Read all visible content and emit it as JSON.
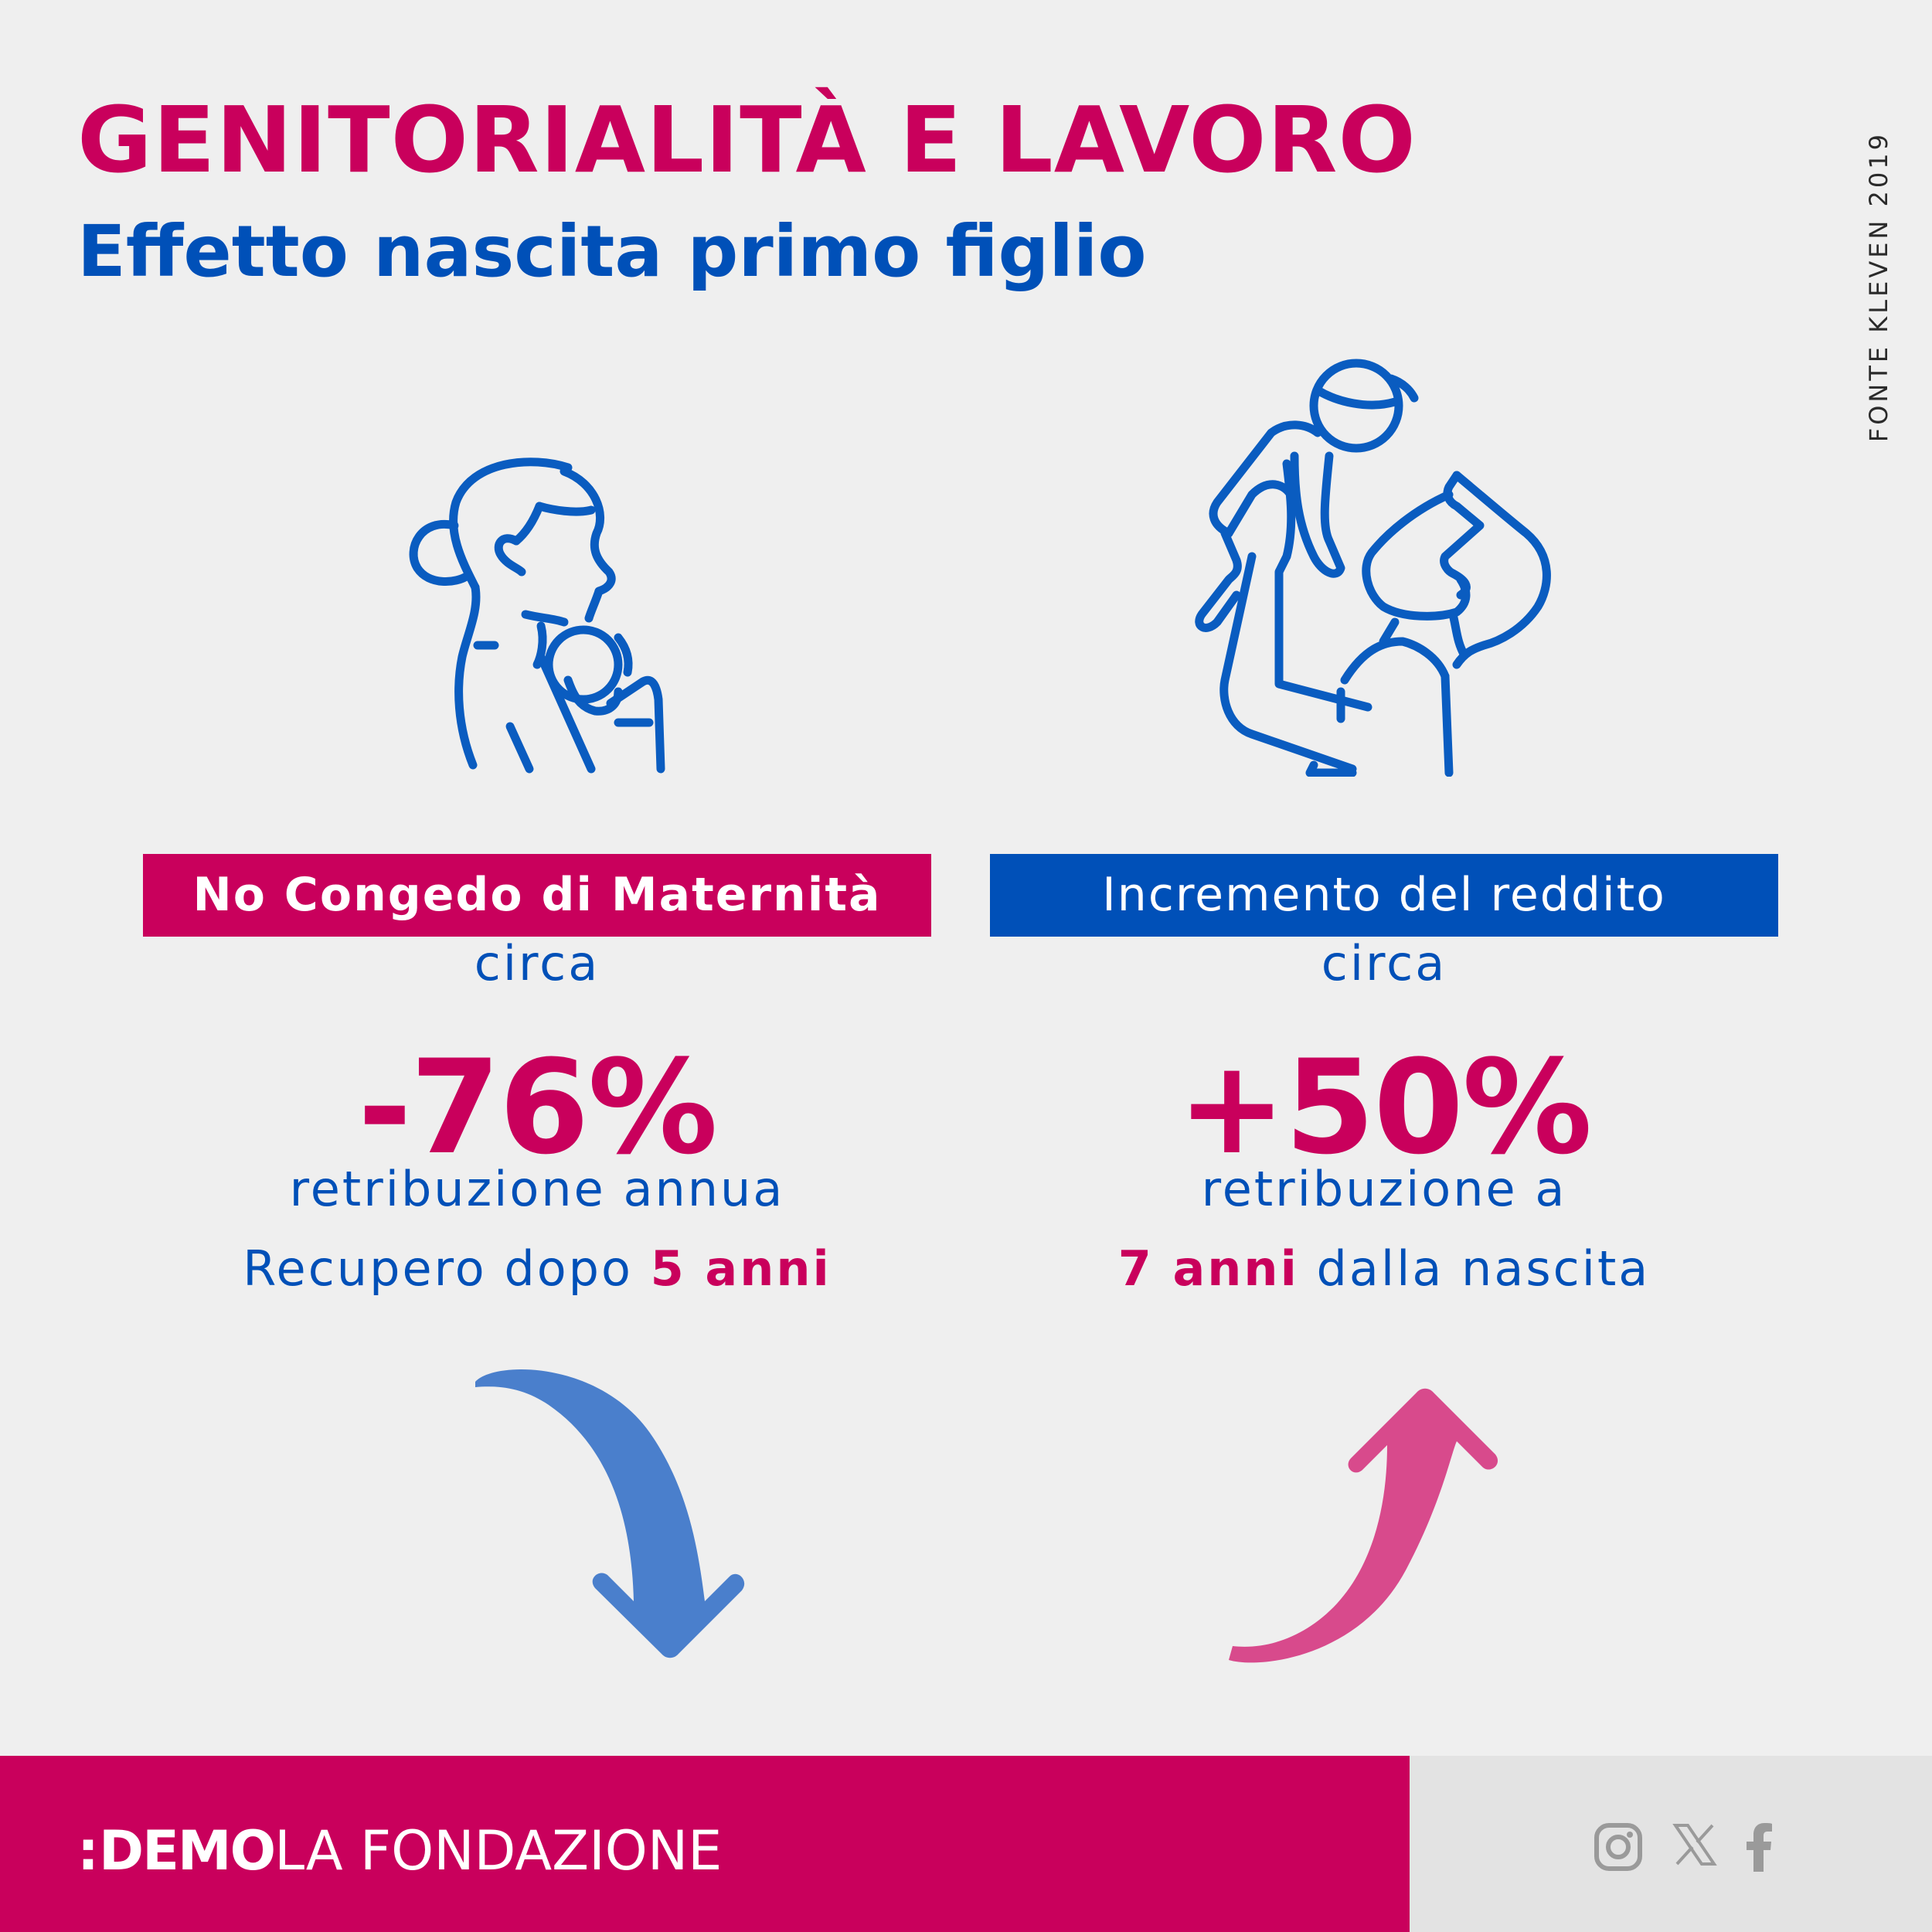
{
  "header": {
    "title": "GENITORIALITÀ E LAVORO",
    "subtitle": "Effetto nascita primo figlio",
    "source": "FONTE KLEVEN 2019"
  },
  "left": {
    "banner": "No Congedo di Maternità",
    "circa": "circa",
    "value": "-76%",
    "line1": "retribuzione annua",
    "line2_prefix": "Recupero dopo ",
    "line2_highlight": "5 anni",
    "icon": "mother-holding-baby-icon",
    "arrow": "curved-arrow-down-icon",
    "arrow_color": "#4a7fcc"
  },
  "right": {
    "banner": "Incremento del reddito",
    "circa": "circa",
    "value": "+50%",
    "line1": "retribuzione a",
    "line2_highlight": "7 anni",
    "line2_suffix": " dalla nascita",
    "icon": "father-lifting-child-icon",
    "arrow": "curved-arrow-up-icon",
    "arrow_color": "#d84a8c"
  },
  "footer": {
    "logo_mark": ":",
    "logo_demo": "DEMO",
    "logo_text": "LA FONDAZIONE",
    "social": [
      "instagram-icon",
      "x-icon",
      "facebook-icon"
    ]
  },
  "colors": {
    "magenta": "#c9005c",
    "blue": "#0050b8",
    "background": "#efefef"
  }
}
